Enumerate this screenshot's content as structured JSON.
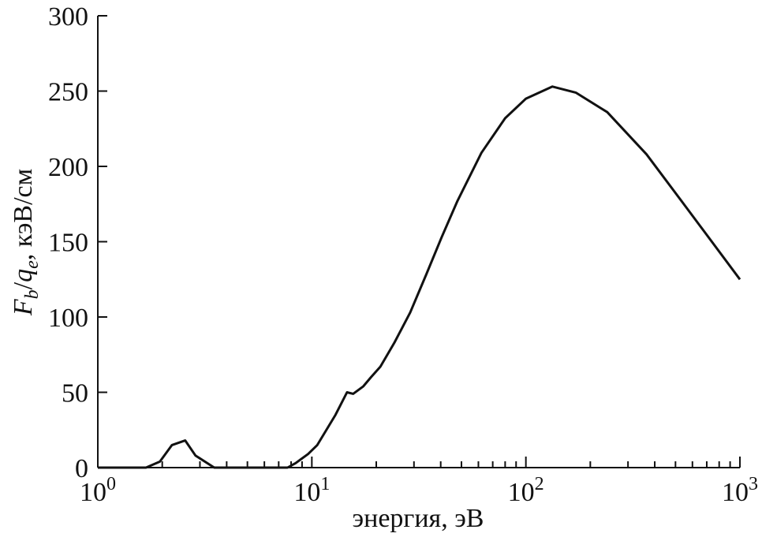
{
  "chart_data": {
    "type": "line",
    "xlabel": "энергия, эВ",
    "ylabel_parts": [
      "F",
      "b",
      "/",
      "q",
      "e",
      ", кэВ/см"
    ],
    "xscale": "log",
    "xlim": [
      1,
      1000
    ],
    "ylim": [
      0,
      300
    ],
    "xticks": [
      {
        "value": 1,
        "label": "10",
        "exponent": "0"
      },
      {
        "value": 10,
        "label": "10",
        "exponent": "1"
      },
      {
        "value": 100,
        "label": "10",
        "exponent": "2"
      },
      {
        "value": 1000,
        "label": "10",
        "exponent": "3"
      }
    ],
    "yticks": [
      0,
      50,
      100,
      150,
      200,
      250,
      300
    ],
    "color": "#111111",
    "x": [
      1,
      1.68,
      1.95,
      2.22,
      2.56,
      2.86,
      3.5,
      7.7,
      8.4,
      9.6,
      10.6,
      12.9,
      14.6,
      15.6,
      17.4,
      18.9,
      20.9,
      24.3,
      28.8,
      34.2,
      40.4,
      47.9,
      62,
      80,
      100,
      133,
      171,
      240,
      366,
      560,
      1000
    ],
    "values": [
      0,
      0,
      4,
      15,
      18,
      8,
      0,
      0,
      3,
      9,
      15,
      35,
      50,
      49,
      54,
      60,
      67,
      83,
      103,
      128,
      153,
      177,
      209,
      232,
      245,
      253,
      249,
      236,
      208,
      173,
      125
    ]
  }
}
